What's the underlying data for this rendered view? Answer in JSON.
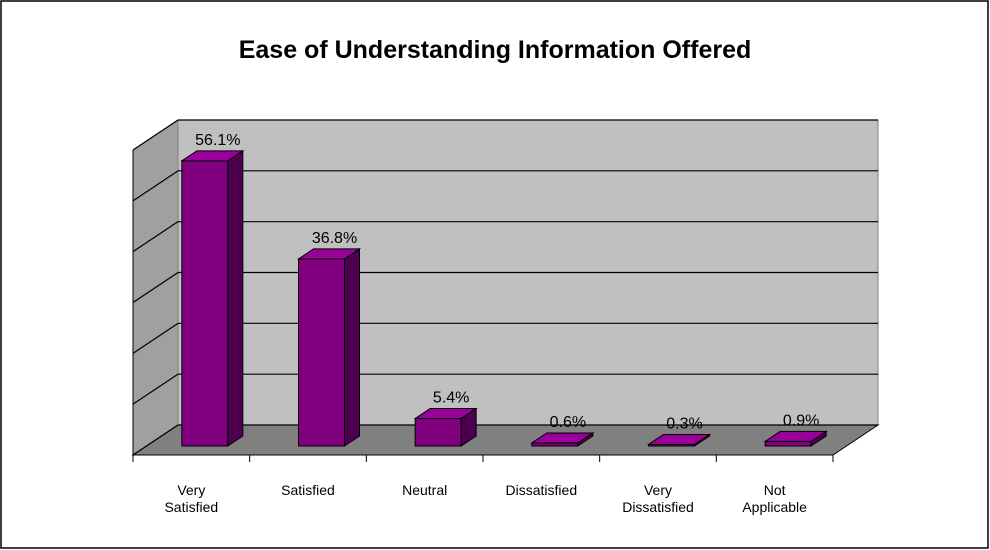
{
  "chart_data": {
    "type": "bar3d",
    "title": "Ease of Understanding Information Offered",
    "categories": [
      "Very Satisfied",
      "Satisfied",
      "Neutral",
      "Dissatisfied",
      "Very Dissatisfied",
      "Not Applicable"
    ],
    "values": [
      56.1,
      36.8,
      5.4,
      0.6,
      0.3,
      0.9
    ],
    "value_labels": [
      "56.1%",
      "36.8%",
      "5.4%",
      "0.6%",
      "0.3%",
      "0.9%"
    ],
    "color": "#800080",
    "ylim": [
      0,
      60
    ],
    "yticks": [
      0,
      10,
      20,
      30,
      40,
      50,
      60
    ],
    "grid": true
  }
}
